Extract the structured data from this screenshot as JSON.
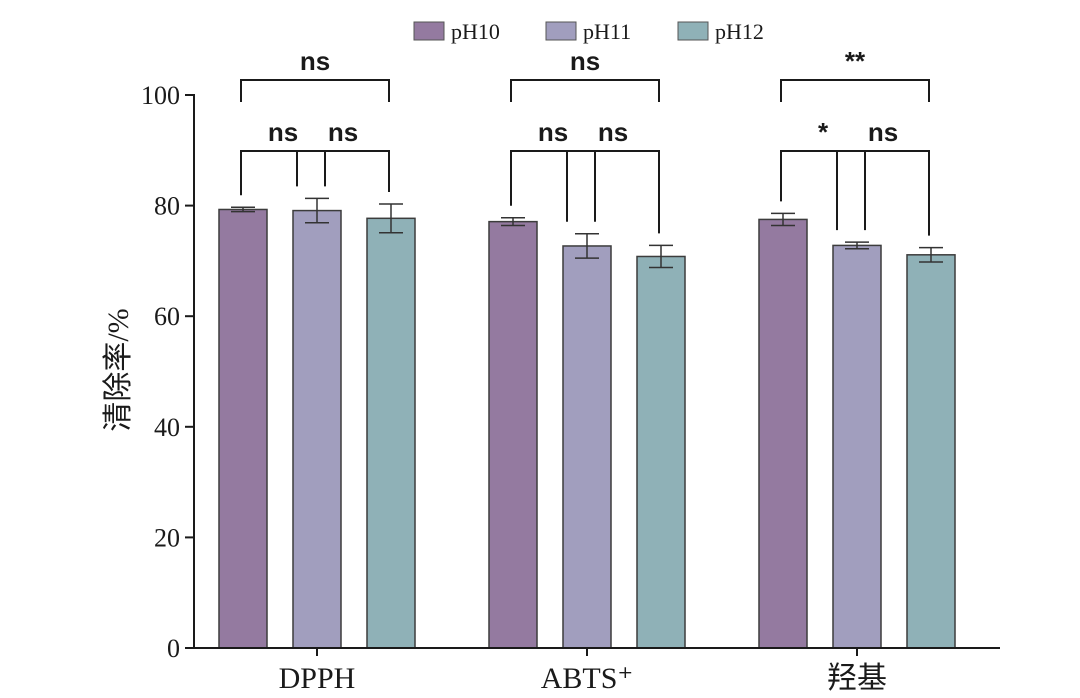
{
  "chart_data": {
    "type": "bar",
    "title": "",
    "xlabel": "",
    "ylabel": "清除率/%",
    "ylim": [
      0,
      100
    ],
    "yticks": [
      0,
      20,
      40,
      60,
      80,
      100
    ],
    "categories": [
      "DPPH",
      "ABTS⁺",
      "羟基"
    ],
    "legend_position": "top",
    "series": [
      {
        "name": "pH10",
        "color": "#947aa0",
        "values": [
          79.3,
          77.1,
          77.5
        ],
        "errors": [
          0.4,
          0.7,
          1.1
        ]
      },
      {
        "name": "pH11",
        "color": "#a19ebe",
        "values": [
          79.1,
          72.7,
          72.8
        ],
        "errors": [
          2.2,
          2.2,
          0.6
        ]
      },
      {
        "name": "pH12",
        "color": "#8fb1b7",
        "values": [
          77.7,
          70.8,
          71.1
        ],
        "errors": [
          2.6,
          2.0,
          1.3
        ]
      }
    ],
    "significance": [
      {
        "category": 0,
        "from": 0,
        "to": 2,
        "label": "ns",
        "level": "top"
      },
      {
        "category": 0,
        "from": 0,
        "to": 1,
        "label": "ns",
        "level": "low"
      },
      {
        "category": 0,
        "from": 1,
        "to": 2,
        "label": "ns",
        "level": "low"
      },
      {
        "category": 1,
        "from": 0,
        "to": 2,
        "label": "ns",
        "level": "top"
      },
      {
        "category": 1,
        "from": 0,
        "to": 1,
        "label": "ns",
        "level": "low"
      },
      {
        "category": 1,
        "from": 1,
        "to": 2,
        "label": "ns",
        "level": "low"
      },
      {
        "category": 2,
        "from": 0,
        "to": 2,
        "label": "**",
        "level": "top"
      },
      {
        "category": 2,
        "from": 0,
        "to": 1,
        "label": "*",
        "level": "low"
      },
      {
        "category": 2,
        "from": 1,
        "to": 2,
        "label": "ns",
        "level": "low"
      }
    ]
  }
}
